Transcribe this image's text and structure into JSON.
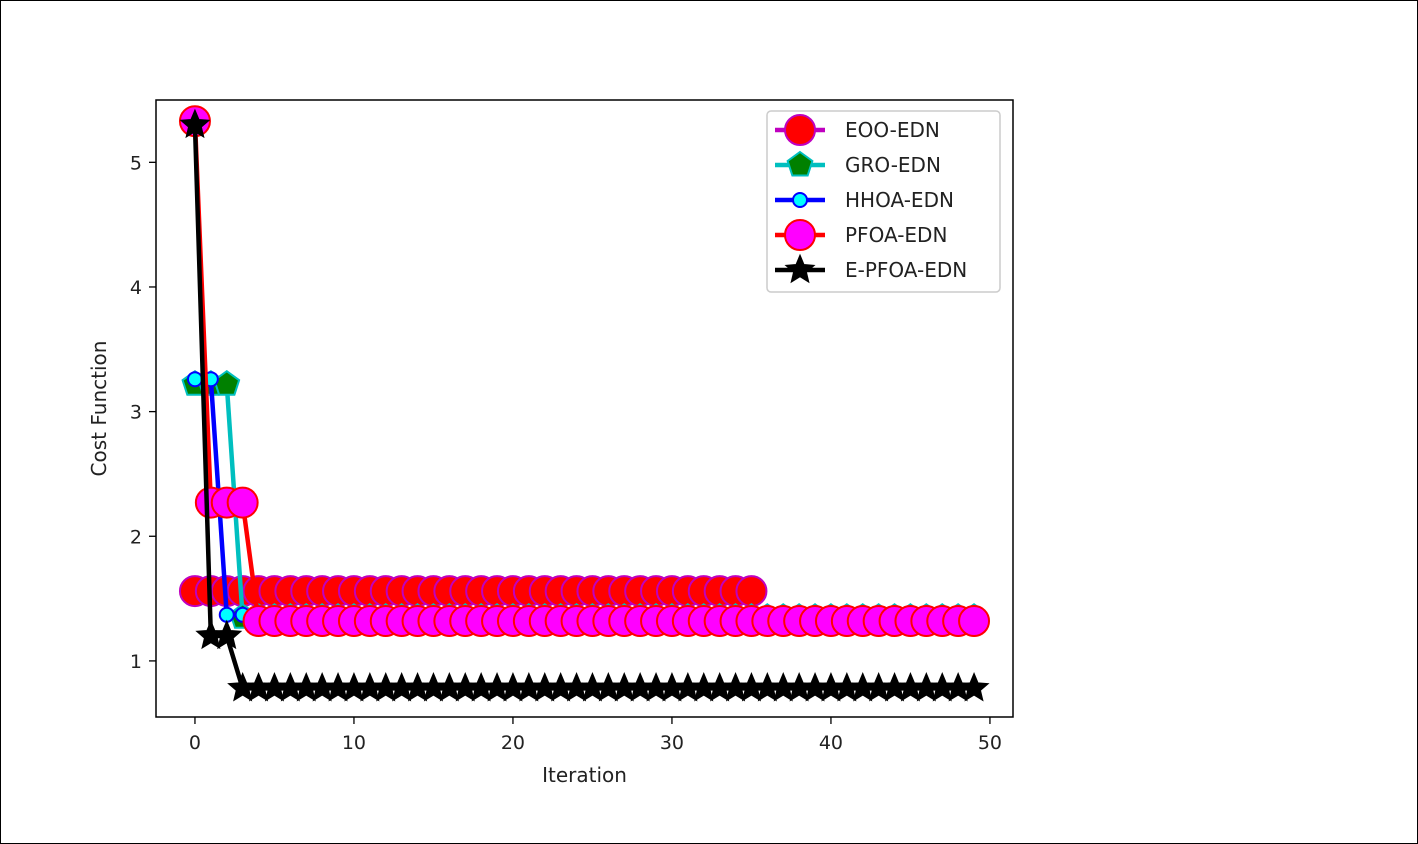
{
  "chart_data": {
    "type": "line",
    "xlabel": "Iteration",
    "ylabel": "Cost Function",
    "xlim": [
      -2.45,
      51.45
    ],
    "ylim": [
      0.55,
      5.5
    ],
    "xticks": [
      0,
      10,
      20,
      30,
      40,
      50
    ],
    "yticks": [
      1,
      2,
      3,
      4,
      5
    ],
    "legend_position": "top-right",
    "grid": false,
    "series": [
      {
        "name": "EOO-EDN",
        "line_color": "#bf00bf",
        "marker": "circle",
        "marker_fill": "#ff0000",
        "marker_edge": "#bf00bf",
        "x": [
          0,
          1,
          2,
          3,
          4,
          5,
          6,
          7,
          8,
          9,
          10,
          11,
          12,
          13,
          14,
          15,
          16,
          17,
          18,
          19,
          20,
          21,
          22,
          23,
          24,
          25,
          26,
          27,
          28,
          29,
          30,
          31,
          32,
          33,
          34,
          35
        ],
        "values": [
          1.56,
          1.56,
          1.56,
          1.56,
          1.56,
          1.56,
          1.56,
          1.56,
          1.56,
          1.56,
          1.56,
          1.56,
          1.56,
          1.56,
          1.56,
          1.56,
          1.56,
          1.56,
          1.56,
          1.56,
          1.56,
          1.56,
          1.56,
          1.56,
          1.56,
          1.56,
          1.56,
          1.56,
          1.56,
          1.56,
          1.56,
          1.56,
          1.56,
          1.56,
          1.56,
          1.56
        ]
      },
      {
        "name": "GRO-EDN",
        "line_color": "#00bfbf",
        "marker": "pentagon",
        "marker_fill": "#008000",
        "marker_edge": "#00bfbf",
        "x": [
          0,
          1,
          2,
          3,
          4,
          5,
          6,
          7,
          8,
          9,
          10,
          11,
          12,
          13,
          14,
          15,
          16,
          17,
          18,
          19,
          20,
          21,
          22,
          23,
          24,
          25,
          26,
          27,
          28,
          29,
          30,
          31,
          32,
          33,
          34,
          35,
          36,
          37,
          38,
          39,
          40,
          41,
          42,
          43,
          44,
          45,
          46,
          47,
          48,
          49
        ],
        "values": [
          3.22,
          3.22,
          3.22,
          1.35,
          1.35,
          1.35,
          1.35,
          1.35,
          1.35,
          1.35,
          1.35,
          1.35,
          1.35,
          1.35,
          1.35,
          1.35,
          1.35,
          1.35,
          1.35,
          1.35,
          1.35,
          1.35,
          1.35,
          1.35,
          1.35,
          1.35,
          1.35,
          1.35,
          1.35,
          1.35,
          1.35,
          1.35,
          1.35,
          1.35,
          1.35,
          1.35,
          1.35,
          1.35,
          1.35,
          1.35,
          1.35,
          1.35,
          1.35,
          1.35,
          1.35,
          1.35,
          1.35,
          1.35,
          1.35,
          1.35
        ]
      },
      {
        "name": "HHOA-EDN",
        "line_color": "#0000ff",
        "marker": "small-circle",
        "marker_fill": "#00ffff",
        "marker_edge": "#0000ff",
        "x": [
          0,
          1,
          2,
          3,
          4,
          5,
          6,
          7,
          8,
          9,
          10,
          11,
          12,
          13,
          14,
          15,
          16,
          17,
          18,
          19,
          20,
          21,
          22,
          23,
          24,
          25,
          26,
          27,
          28,
          29,
          30,
          31,
          32,
          33,
          34,
          35,
          36,
          37,
          38,
          39,
          40,
          41,
          42,
          43,
          44,
          45,
          46,
          47,
          48,
          49
        ],
        "values": [
          3.26,
          3.26,
          1.37,
          1.37,
          1.37,
          1.37,
          1.37,
          1.37,
          1.37,
          1.37,
          1.37,
          1.37,
          1.37,
          1.37,
          1.37,
          1.37,
          1.37,
          1.37,
          1.37,
          1.37,
          1.37,
          1.37,
          1.37,
          1.37,
          1.37,
          1.37,
          1.37,
          1.37,
          1.37,
          1.37,
          1.37,
          1.37,
          1.37,
          1.37,
          1.37,
          1.37,
          1.37,
          1.37,
          1.37,
          1.37,
          1.37,
          1.37,
          1.37,
          1.37,
          1.37,
          1.37,
          1.37,
          1.37,
          1.37,
          1.37
        ]
      },
      {
        "name": "PFOA-EDN",
        "line_color": "#ff0000",
        "marker": "circle",
        "marker_fill": "#ff00ff",
        "marker_edge": "#ff0000",
        "x": [
          0,
          1,
          2,
          3,
          4,
          5,
          6,
          7,
          8,
          9,
          10,
          11,
          12,
          13,
          14,
          15,
          16,
          17,
          18,
          19,
          20,
          21,
          22,
          23,
          24,
          25,
          26,
          27,
          28,
          29,
          30,
          31,
          32,
          33,
          34,
          35,
          36,
          37,
          38,
          39,
          40,
          41,
          42,
          43,
          44,
          45,
          46,
          47,
          48,
          49
        ],
        "values": [
          5.33,
          2.27,
          2.27,
          2.27,
          1.32,
          1.32,
          1.32,
          1.32,
          1.32,
          1.32,
          1.32,
          1.32,
          1.32,
          1.32,
          1.32,
          1.32,
          1.32,
          1.32,
          1.32,
          1.32,
          1.32,
          1.32,
          1.32,
          1.32,
          1.32,
          1.32,
          1.32,
          1.32,
          1.32,
          1.32,
          1.32,
          1.32,
          1.32,
          1.32,
          1.32,
          1.32,
          1.32,
          1.32,
          1.32,
          1.32,
          1.32,
          1.32,
          1.32,
          1.32,
          1.32,
          1.32,
          1.32,
          1.32,
          1.32,
          1.32
        ]
      },
      {
        "name": "E-PFOA-EDN",
        "line_color": "#000000",
        "marker": "star",
        "marker_fill": "#000000",
        "marker_edge": "#000000",
        "x": [
          0,
          1,
          2,
          3,
          4,
          5,
          6,
          7,
          8,
          9,
          10,
          11,
          12,
          13,
          14,
          15,
          16,
          17,
          18,
          19,
          20,
          21,
          22,
          23,
          24,
          25,
          26,
          27,
          28,
          29,
          30,
          31,
          32,
          33,
          34,
          35,
          36,
          37,
          38,
          39,
          40,
          41,
          42,
          43,
          44,
          45,
          46,
          47,
          48,
          49
        ],
        "values": [
          5.3,
          1.2,
          1.2,
          0.78,
          0.78,
          0.78,
          0.78,
          0.78,
          0.78,
          0.78,
          0.78,
          0.78,
          0.78,
          0.78,
          0.78,
          0.78,
          0.78,
          0.78,
          0.78,
          0.78,
          0.78,
          0.78,
          0.78,
          0.78,
          0.78,
          0.78,
          0.78,
          0.78,
          0.78,
          0.78,
          0.78,
          0.78,
          0.78,
          0.78,
          0.78,
          0.78,
          0.78,
          0.78,
          0.78,
          0.78,
          0.78,
          0.78,
          0.78,
          0.78,
          0.78,
          0.78,
          0.78,
          0.78,
          0.78,
          0.78
        ]
      }
    ]
  }
}
